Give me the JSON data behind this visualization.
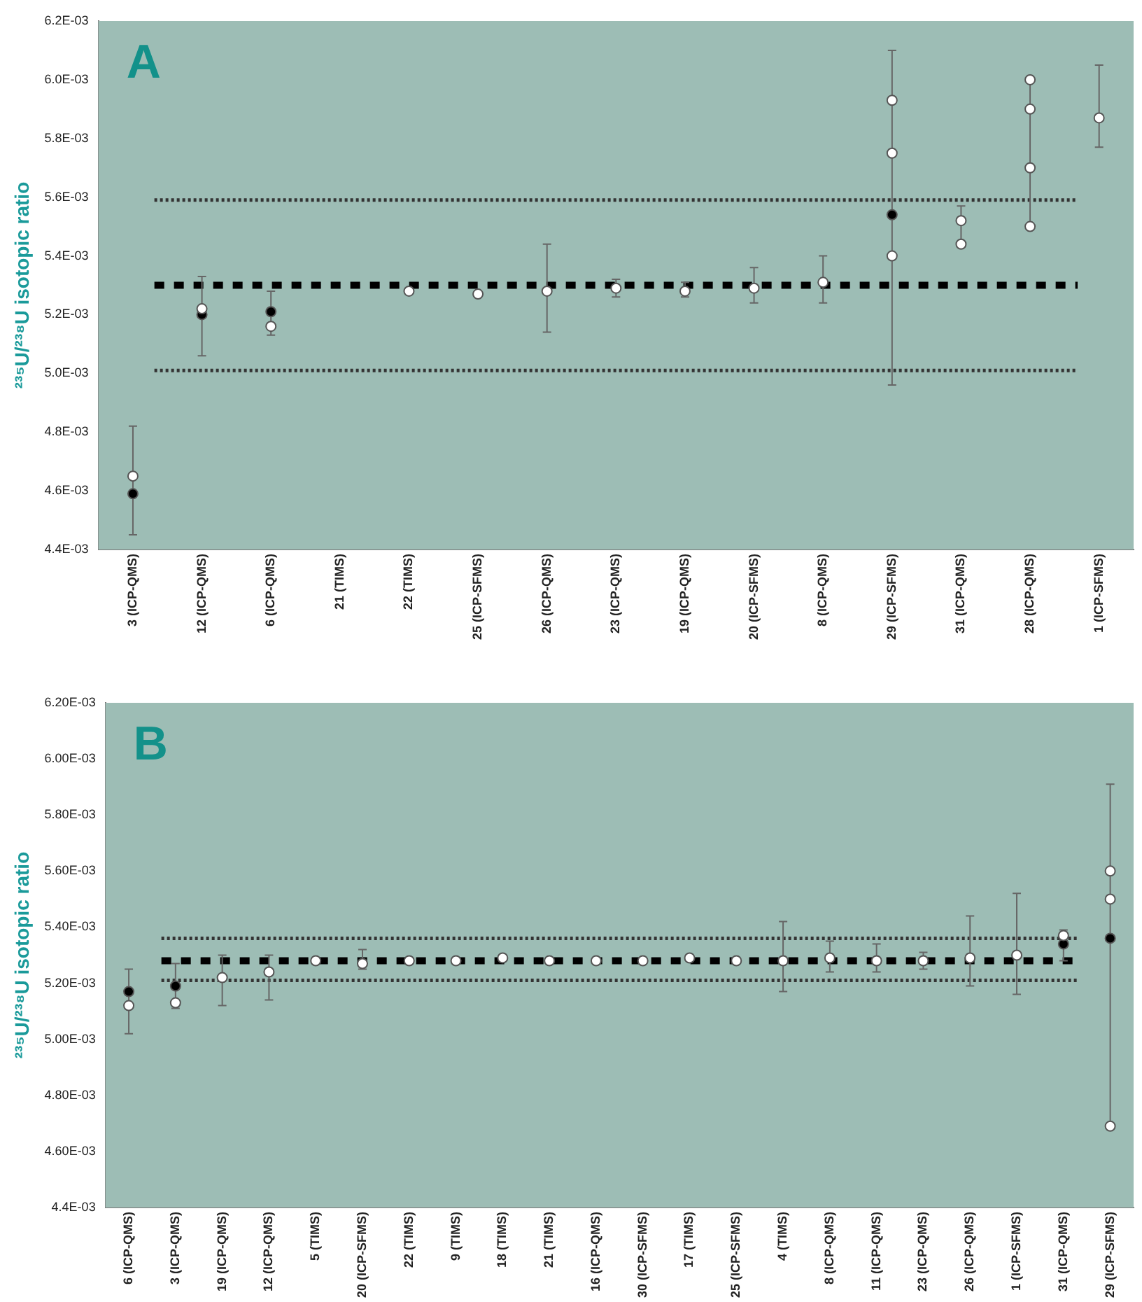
{
  "chart_data": [
    {
      "type": "scatter",
      "ylabel": "²³⁵U/²³⁸U isotopic ratio",
      "annotations": [
        "A"
      ],
      "categories": [
        "3 (ICP-QMS)",
        "12 (ICP-QMS)",
        "6 (ICP-QMS)",
        "21 (TIMS)",
        "22 (TIMS)",
        "25 (ICP-SFMS)",
        "26 (ICP-QMS)",
        "23 (ICP-QMS)",
        "19 (ICP-QMS)",
        "20 (ICP-SFMS)",
        "8 (ICP-QMS)",
        "29 (ICP-SFMS)",
        "31 (ICP-QMS)",
        "28 (ICP-QMS)",
        "1 (ICP-SFMS)"
      ],
      "ylim": [
        0.0044,
        0.0062
      ],
      "yticks": [
        {
          "value": 0.0044,
          "label": "4.4E-03"
        },
        {
          "value": 0.0046,
          "label": "4.6E-03"
        },
        {
          "value": 0.0048,
          "label": "4.8E-03"
        },
        {
          "value": 0.005,
          "label": "5.0E-03"
        },
        {
          "value": 0.0052,
          "label": "5.2E-03"
        },
        {
          "value": 0.0054,
          "label": "5.4E-03"
        },
        {
          "value": 0.0056,
          "label": "5.6E-03"
        },
        {
          "value": 0.0058,
          "label": "5.8E-03"
        },
        {
          "value": 0.006,
          "label": "6.0E-03"
        },
        {
          "value": 0.0062,
          "label": "6.2E-03"
        }
      ],
      "grid": false,
      "legend": false,
      "marker": "circle",
      "ref_lines": [
        {
          "axis": "y",
          "value": 0.0053,
          "color": "#000000",
          "line_style": "dashed"
        },
        {
          "axis": "y",
          "value": 0.00559,
          "color": "#333333",
          "line_style": "dotted"
        },
        {
          "axis": "y",
          "value": 0.00501,
          "color": "#333333",
          "line_style": "dotted"
        }
      ],
      "series": [
        {
          "color": "#ffffff",
          "x": [
            "3 (ICP-QMS)",
            "12 (ICP-QMS)",
            "6 (ICP-QMS)",
            "22 (TIMS)",
            "25 (ICP-SFMS)",
            "26 (ICP-QMS)",
            "23 (ICP-QMS)",
            "19 (ICP-QMS)",
            "20 (ICP-SFMS)",
            "8 (ICP-QMS)",
            "29 (ICP-SFMS)",
            "31 (ICP-QMS)",
            "28 (ICP-QMS)",
            "1 (ICP-SFMS)"
          ],
          "values": [
            0.00465,
            0.00522,
            0.00516,
            0.00528,
            0.00527,
            0.00528,
            0.00529,
            0.00528,
            0.00529,
            0.00531,
            0.0054,
            0.00544,
            0.0057,
            0.00587
          ],
          "errors": [
            [
              0.00445,
              0.00482
            ],
            [
              0.00506,
              0.00533
            ],
            [
              0.00513,
              0.00528
            ],
            null,
            null,
            [
              0.00514,
              0.00544
            ],
            [
              0.00526,
              0.00532
            ],
            [
              0.00526,
              0.00531
            ],
            [
              0.00524,
              0.00536
            ],
            [
              0.00524,
              0.0054
            ],
            [
              0.00496,
              0.0061
            ],
            [
              0.00543,
              0.00557
            ],
            [
              0.0055,
              0.006
            ],
            [
              0.00577,
              0.00605
            ]
          ]
        },
        {
          "color": "#ffffff",
          "x": [
            "29 (ICP-SFMS)",
            "29 (ICP-SFMS)",
            "28 (ICP-QMS)",
            "28 (ICP-QMS)",
            "28 (ICP-QMS)",
            "31 (ICP-QMS)"
          ],
          "values": [
            0.00593,
            0.00575,
            0.006,
            0.0059,
            0.0055,
            0.00552
          ]
        },
        {
          "color": "#000000",
          "x": [
            "3 (ICP-QMS)",
            "12 (ICP-QMS)",
            "6 (ICP-QMS)",
            "29 (ICP-SFMS)"
          ],
          "values": [
            0.00459,
            0.0052,
            0.00521,
            0.00554
          ]
        }
      ]
    },
    {
      "type": "scatter",
      "ylabel": "²³⁵U/²³⁸U isotopic ratio",
      "annotations": [
        "B"
      ],
      "categories": [
        "6 (ICP-QMS)",
        "3 (ICP-QMS)",
        "19 (ICP-QMS)",
        "12 (ICP-QMS)",
        "5 (TIMS)",
        "20 (ICP-SFMS)",
        "22 (TIMS)",
        "9 (TIMS)",
        "18 (TIMS)",
        "21 (TIMS)",
        "16 (ICP-QMS)",
        "30 (ICP-SFMS)",
        "17 (TIMS)",
        "25 (ICP-SFMS)",
        "4 (TIMS)",
        "8 (ICP-QMS)",
        "11 (ICP-QMS)",
        "23 (ICP-QMS)",
        "26 (ICP-QMS)",
        "1 (ICP-SFMS)",
        "31 (ICP-QMS)",
        "29 (ICP-SFMS)"
      ],
      "ylim": [
        0.0044,
        0.0062
      ],
      "yticks": [
        {
          "value": 0.0044,
          "label": "4.4E-03"
        },
        {
          "value": 0.0046,
          "label": "4.60E-03"
        },
        {
          "value": 0.0048,
          "label": "4.80E-03"
        },
        {
          "value": 0.005,
          "label": "5.00E-03"
        },
        {
          "value": 0.0052,
          "label": "5.20E-03"
        },
        {
          "value": 0.0054,
          "label": "5.40E-03"
        },
        {
          "value": 0.0056,
          "label": "5.60E-03"
        },
        {
          "value": 0.0058,
          "label": "5.80E-03"
        },
        {
          "value": 0.006,
          "label": "6.00E-03"
        },
        {
          "value": 0.0062,
          "label": "6.20E-03"
        }
      ],
      "grid": false,
      "legend": false,
      "marker": "circle",
      "ref_lines": [
        {
          "axis": "y",
          "value": 0.00528,
          "color": "#000000",
          "line_style": "dashed"
        },
        {
          "axis": "y",
          "value": 0.00536,
          "color": "#333333",
          "line_style": "dotted"
        },
        {
          "axis": "y",
          "value": 0.00521,
          "color": "#333333",
          "line_style": "dotted"
        }
      ],
      "series": [
        {
          "color": "#ffffff",
          "x": [
            "6 (ICP-QMS)",
            "3 (ICP-QMS)",
            "19 (ICP-QMS)",
            "12 (ICP-QMS)",
            "5 (TIMS)",
            "20 (ICP-SFMS)",
            "22 (TIMS)",
            "9 (TIMS)",
            "18 (TIMS)",
            "21 (TIMS)",
            "16 (ICP-QMS)",
            "30 (ICP-SFMS)",
            "17 (TIMS)",
            "25 (ICP-SFMS)",
            "4 (TIMS)",
            "8 (ICP-QMS)",
            "11 (ICP-QMS)",
            "23 (ICP-QMS)",
            "26 (ICP-QMS)",
            "1 (ICP-SFMS)",
            "31 (ICP-QMS)",
            "29 (ICP-SFMS)"
          ],
          "values": [
            0.00512,
            0.00513,
            0.00522,
            0.00524,
            0.00528,
            0.00527,
            0.00528,
            0.00528,
            0.00529,
            0.00528,
            0.00528,
            0.00528,
            0.00529,
            0.00528,
            0.00528,
            0.00529,
            0.00528,
            0.00528,
            0.00529,
            0.0053,
            0.00537,
            0.0056
          ],
          "errors": [
            [
              0.00502,
              0.00525
            ],
            [
              0.00511,
              0.00527
            ],
            [
              0.00512,
              0.0053
            ],
            [
              0.00514,
              0.0053
            ],
            null,
            [
              0.00525,
              0.00532
            ],
            null,
            null,
            null,
            null,
            null,
            null,
            null,
            null,
            [
              0.00517,
              0.00542
            ],
            [
              0.00524,
              0.00535
            ],
            [
              0.00524,
              0.00534
            ],
            [
              0.00525,
              0.00531
            ],
            [
              0.00519,
              0.00544
            ],
            [
              0.00516,
              0.00552
            ],
            [
              0.00528,
              0.00539
            ],
            [
              0.0047,
              0.00591
            ]
          ]
        },
        {
          "color": "#ffffff",
          "x": [
            "29 (ICP-SFMS)",
            "29 (ICP-SFMS)"
          ],
          "values": [
            0.0055,
            0.00469
          ]
        },
        {
          "color": "#000000",
          "x": [
            "6 (ICP-QMS)",
            "3 (ICP-QMS)",
            "31 (ICP-QMS)",
            "29 (ICP-SFMS)"
          ],
          "values": [
            0.00517,
            0.00519,
            0.00534,
            0.00536
          ]
        }
      ]
    }
  ]
}
